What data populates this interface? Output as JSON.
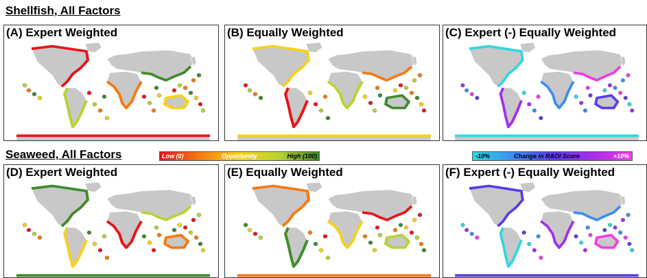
{
  "sections": [
    {
      "title": "Shellfish, All Factors"
    },
    {
      "title": "Seaweed, All Factors"
    }
  ],
  "panels": [
    {
      "label": "(A) Expert Weighted",
      "scheme": "opportunity",
      "variant": 0
    },
    {
      "label": "(B) Equally Weighted",
      "scheme": "opportunity",
      "variant": 1
    },
    {
      "label": "(C) Expert (-) Equally Weighted",
      "scheme": "change",
      "variant": 0
    },
    {
      "label": "(D) Expert Weighted",
      "scheme": "opportunity",
      "variant": 2
    },
    {
      "label": "(E) Equally Weighted",
      "scheme": "opportunity",
      "variant": 3
    },
    {
      "label": "(F) Expert (-) Equally Weighted",
      "scheme": "change",
      "variant": 1
    }
  ],
  "legends": {
    "opportunity": {
      "low": "Low (0)",
      "title": "Opportunity",
      "high": "High (100)",
      "colors": [
        "#e8141a",
        "#f57a10",
        "#f6d21a",
        "#b9d233",
        "#3f8b2a"
      ]
    },
    "change": {
      "low": "-10%",
      "title": "Change in RAOI Score",
      "high": "+10%",
      "colors": [
        "#2fd8df",
        "#3a8ef0",
        "#5a3ce8",
        "#a42ee8",
        "#f03ce8"
      ]
    }
  },
  "colors": {
    "land": "#c8c8c8",
    "land_border": "#ffffff",
    "frame": "#333333"
  }
}
